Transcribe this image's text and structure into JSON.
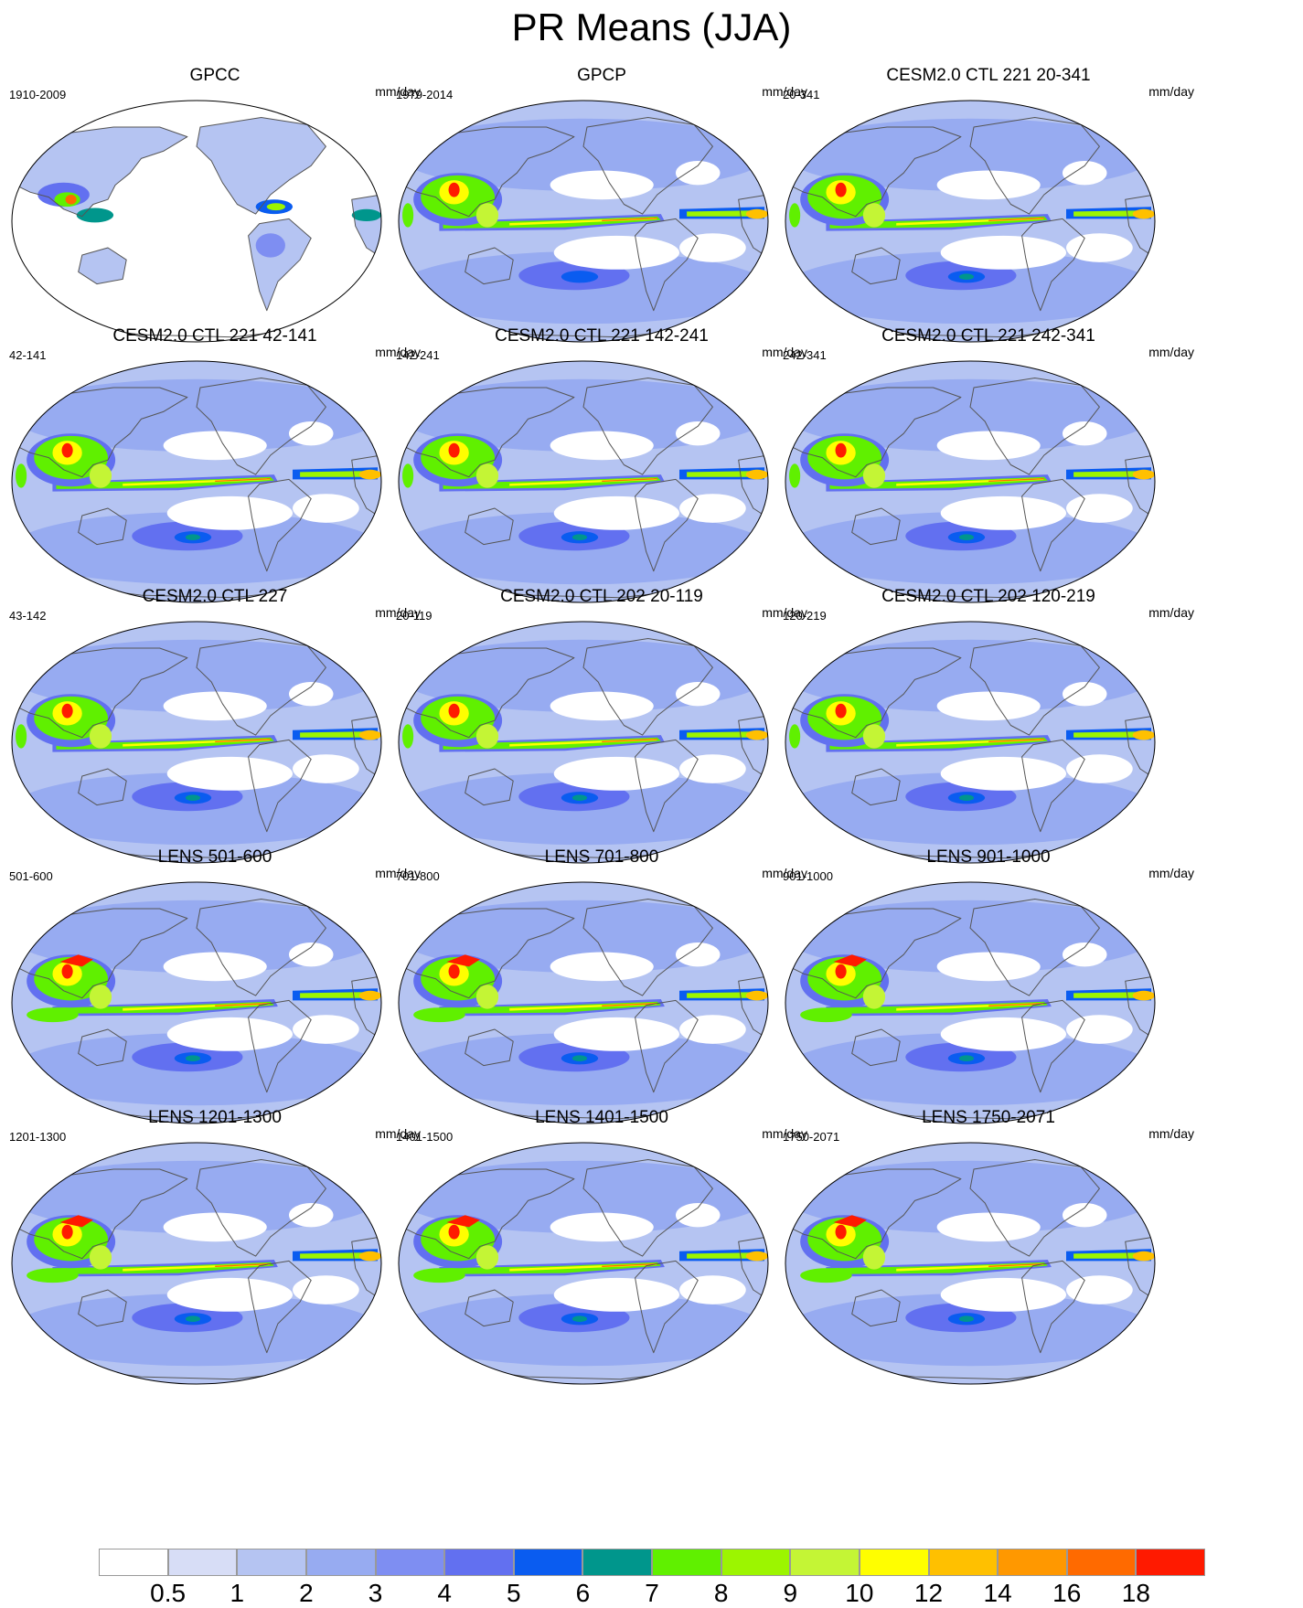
{
  "page": {
    "title": "PR Means (JJA)"
  },
  "panels": [
    {
      "title": "GPCC",
      "left_label": "1910-2009",
      "right_label": "mm/day",
      "kind": "obs_gpcc"
    },
    {
      "title": "GPCP",
      "left_label": "1979-2014",
      "right_label": "mm/day",
      "kind": "obs_gpcp"
    },
    {
      "title": "CESM2.0 CTL 221 20-341",
      "left_label": "20-341",
      "right_label": "mm/day",
      "kind": "cesm"
    },
    {
      "title": "CESM2.0 CTL 221 42-141",
      "left_label": "42-141",
      "right_label": "mm/day",
      "kind": "cesm"
    },
    {
      "title": "CESM2.0 CTL 221 142-241",
      "left_label": "142-241",
      "right_label": "mm/day",
      "kind": "cesm"
    },
    {
      "title": "CESM2.0 CTL 221 242-341",
      "left_label": "242-341",
      "right_label": "mm/day",
      "kind": "cesm"
    },
    {
      "title": "CESM2.0 CTL 227",
      "left_label": "43-142",
      "right_label": "mm/day",
      "kind": "cesm"
    },
    {
      "title": "CESM2.0 CTL 202 20-119",
      "left_label": "20-119",
      "right_label": "mm/day",
      "kind": "cesm"
    },
    {
      "title": "CESM2.0 CTL 202 120-219",
      "left_label": "120-219",
      "right_label": "mm/day",
      "kind": "cesm"
    },
    {
      "title": "LENS 501-600",
      "left_label": "501-600",
      "right_label": "mm/day",
      "kind": "lens"
    },
    {
      "title": "LENS 701-800",
      "left_label": "701-800",
      "right_label": "mm/day",
      "kind": "lens"
    },
    {
      "title": "LENS 901-1000",
      "left_label": "901-1000",
      "right_label": "mm/day",
      "kind": "lens"
    },
    {
      "title": "LENS 1201-1300",
      "left_label": "1201-1300",
      "right_label": "mm/day",
      "kind": "lens"
    },
    {
      "title": "LENS 1401-1500",
      "left_label": "1401-1500",
      "right_label": "mm/day",
      "kind": "lens"
    },
    {
      "title": "LENS 1750-2071",
      "left_label": "1750-2071",
      "right_label": "mm/day",
      "kind": "lens"
    }
  ],
  "colorbar": {
    "unit": "mm/day",
    "levels": [
      "0.5",
      "1",
      "2",
      "3",
      "4",
      "5",
      "6",
      "7",
      "8",
      "9",
      "10",
      "12",
      "14",
      "16",
      "18"
    ],
    "colors": [
      "#ffffff",
      "#d7ddf6",
      "#b5c4f2",
      "#97abf1",
      "#7e8ef2",
      "#6270f0",
      "#0a5cf0",
      "#00968c",
      "#60f000",
      "#9cf500",
      "#c4f535",
      "#fffe00",
      "#ffc000",
      "#ff9800",
      "#ff6a00",
      "#ff1a00"
    ]
  }
}
